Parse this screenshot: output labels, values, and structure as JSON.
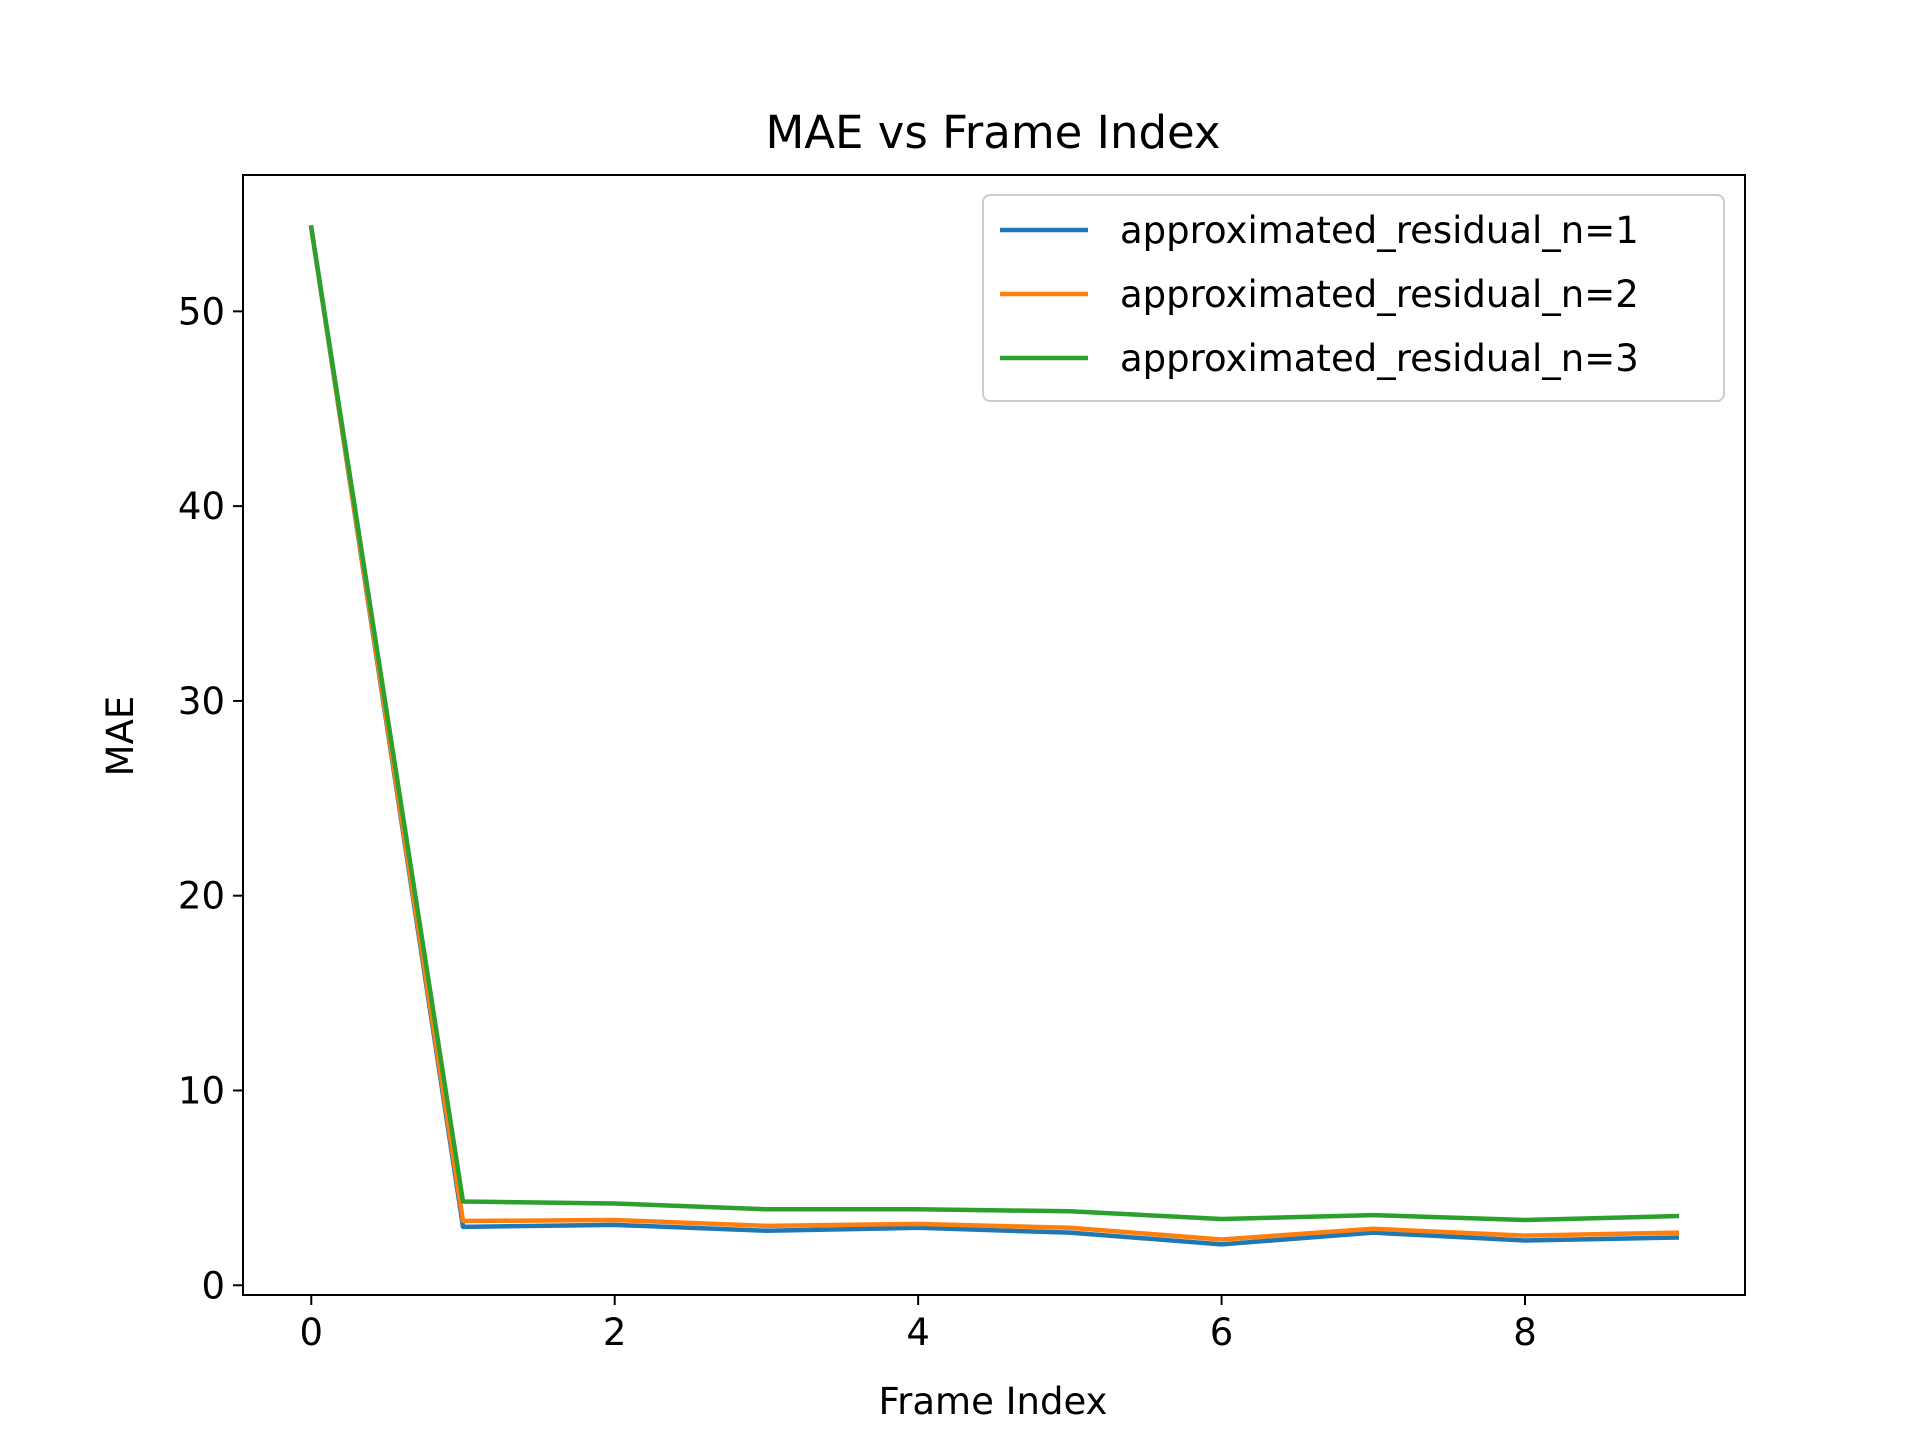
{
  "chart_data": {
    "type": "line",
    "title": "MAE vs Frame Index",
    "xlabel": "Frame Index",
    "ylabel": "MAE",
    "x": [
      0,
      1,
      2,
      3,
      4,
      5,
      6,
      7,
      8,
      9
    ],
    "xlim": [
      -0.45,
      9.45
    ],
    "ylim": [
      -0.5,
      57
    ],
    "xticks": [
      "0",
      "2",
      "4",
      "6",
      "8"
    ],
    "yticks": [
      "0",
      "10",
      "20",
      "30",
      "40",
      "50"
    ],
    "grid": false,
    "legend_position": "top-right",
    "series": [
      {
        "name": "approximated_residual_n=1",
        "color": "#1f77b4",
        "values": [
          54.3,
          3.0,
          3.1,
          2.8,
          2.95,
          2.7,
          2.1,
          2.7,
          2.3,
          2.45
        ]
      },
      {
        "name": "approximated_residual_n=2",
        "color": "#ff7f0e",
        "values": [
          54.3,
          3.3,
          3.35,
          3.05,
          3.15,
          2.95,
          2.35,
          2.9,
          2.55,
          2.7
        ]
      },
      {
        "name": "approximated_residual_n=3",
        "color": "#2ca02c",
        "values": [
          54.3,
          4.3,
          4.2,
          3.9,
          3.9,
          3.8,
          3.4,
          3.6,
          3.35,
          3.55
        ]
      }
    ]
  }
}
